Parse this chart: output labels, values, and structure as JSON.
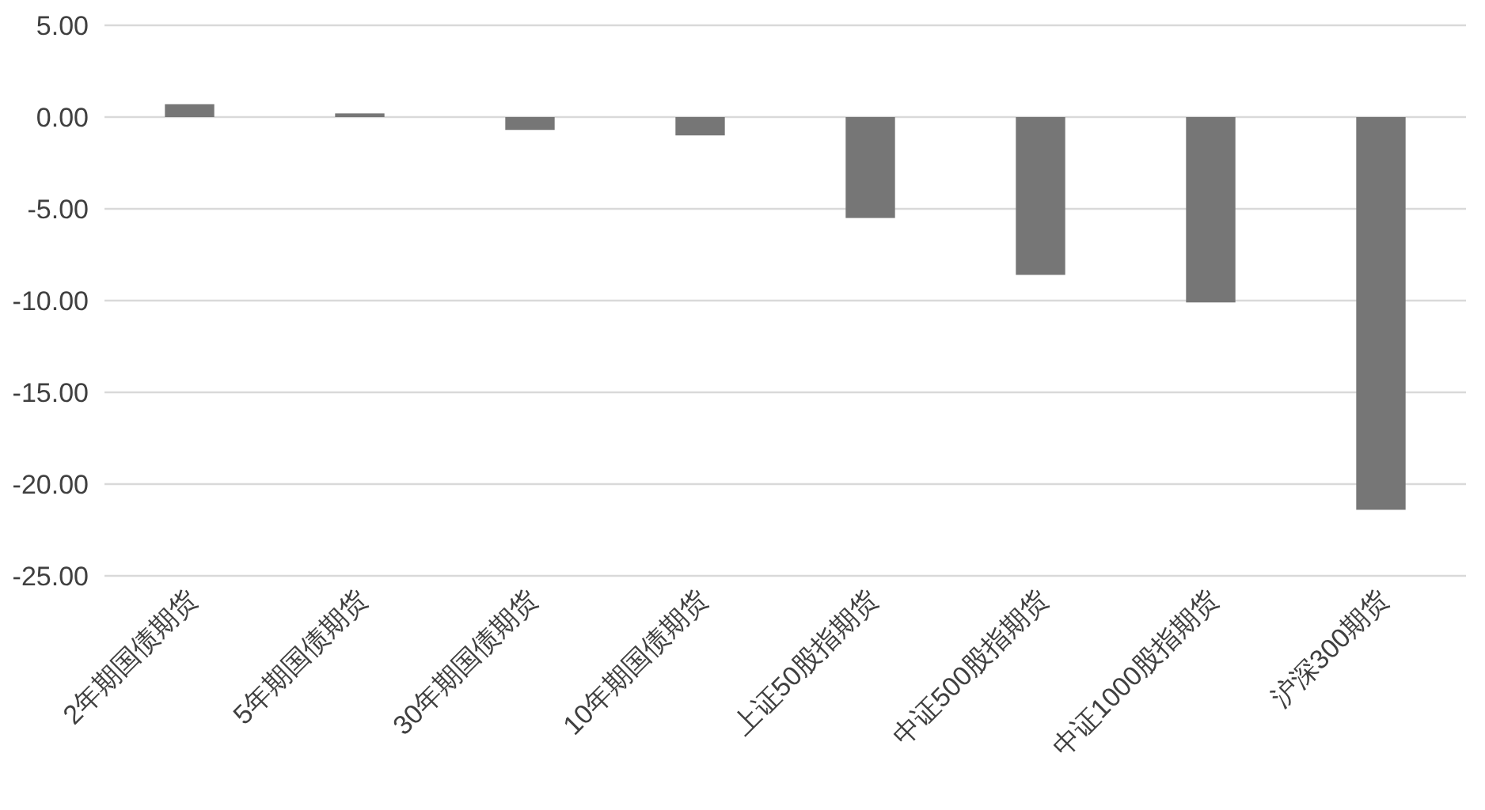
{
  "chart_data": {
    "type": "bar",
    "categories": [
      "2年期国债期货",
      "5年期国债期货",
      "30年期国债期货",
      "10年期国债期货",
      "上证50股指期货",
      "中证500股指期货",
      "中证1000股指期货",
      "沪深300期货"
    ],
    "values": [
      0.7,
      0.2,
      -0.7,
      -1.0,
      -5.5,
      -8.6,
      -10.1,
      -21.4
    ],
    "color": "#767676",
    "ylim": [
      -25,
      5
    ],
    "yticks": [
      {
        "value": 5,
        "label": "5.00"
      },
      {
        "value": 0,
        "label": "0.00"
      },
      {
        "value": -5,
        "label": "-5.00"
      },
      {
        "value": -10,
        "label": "-10.00"
      },
      {
        "value": -15,
        "label": "-15.00"
      },
      {
        "value": -20,
        "label": "-20.00"
      },
      {
        "value": -25,
        "label": "-25.00"
      }
    ],
    "grid": "y"
  }
}
